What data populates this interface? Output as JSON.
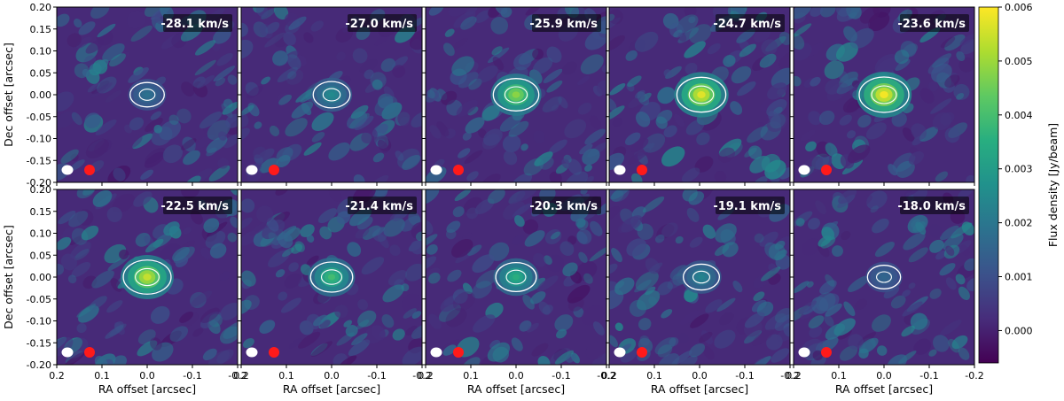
{
  "chart_data": {
    "type": "heatmap",
    "panels": [
      {
        "velocity_label": "-28.1 km/s",
        "peak": 0.0019
      },
      {
        "velocity_label": "-27.0 km/s",
        "peak": 0.0026
      },
      {
        "velocity_label": "-25.9 km/s",
        "peak": 0.0049
      },
      {
        "velocity_label": "-24.7 km/s",
        "peak": 0.0058
      },
      {
        "velocity_label": "-23.6 km/s",
        "peak": 0.006
      },
      {
        "velocity_label": "-22.5 km/s",
        "peak": 0.0055
      },
      {
        "velocity_label": "-21.4 km/s",
        "peak": 0.004
      },
      {
        "velocity_label": "-20.3 km/s",
        "peak": 0.0036
      },
      {
        "velocity_label": "-19.1 km/s",
        "peak": 0.0024
      },
      {
        "velocity_label": "-18.0 km/s",
        "peak": 0.0016
      }
    ],
    "xlabel": "RA offset [arcsec]",
    "ylabel": "Dec offset [arcsec]",
    "xlim": [
      0.2,
      -0.2
    ],
    "ylim": [
      -0.2,
      0.2
    ],
    "x_ticks": [
      "0.2",
      "0.1",
      "0.0",
      "-0.1",
      "-0.2"
    ],
    "y_ticks": [
      "0.20",
      "0.15",
      "0.10",
      "0.05",
      "0.00",
      "-0.05",
      "-0.10",
      "-0.15",
      "-0.20"
    ],
    "colorbar": {
      "label": "Flux density [Jy/beam]",
      "range": [
        -0.0006,
        0.006
      ],
      "ticks": [
        "0.006",
        "0.005",
        "0.004",
        "0.003",
        "0.002",
        "0.001",
        "0.000"
      ],
      "colormap": "viridis"
    },
    "beam_markers": [
      {
        "color": "#ffffff"
      },
      {
        "color": "#ff1a1a"
      }
    ]
  }
}
